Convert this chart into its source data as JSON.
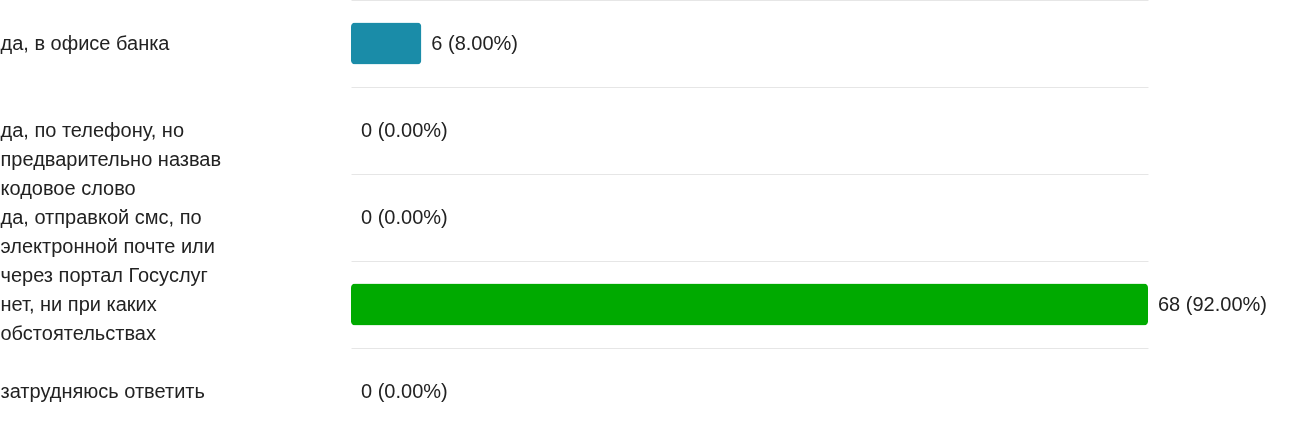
{
  "chart_data": {
    "type": "bar",
    "orientation": "horizontal",
    "grid": "y",
    "categories": [
      "да, в офисе банка",
      "да, по телефону, но предварительно назвав кодовое слово",
      "да, отправкой смс, по электронной почте или через портал Госуслуг",
      "нет, ни при каких обстоятельствах",
      "затрудняюсь ответить"
    ],
    "values": [
      6,
      0,
      0,
      68,
      0
    ],
    "colors": [
      "#1a8ca8",
      null,
      null,
      "#00aa00",
      null
    ],
    "value_labels": [
      "6 (8.00%)",
      "0 (0.00%)",
      "0 (0.00%)",
      "68 (92.00%)",
      "0 (0.00%)"
    ]
  }
}
